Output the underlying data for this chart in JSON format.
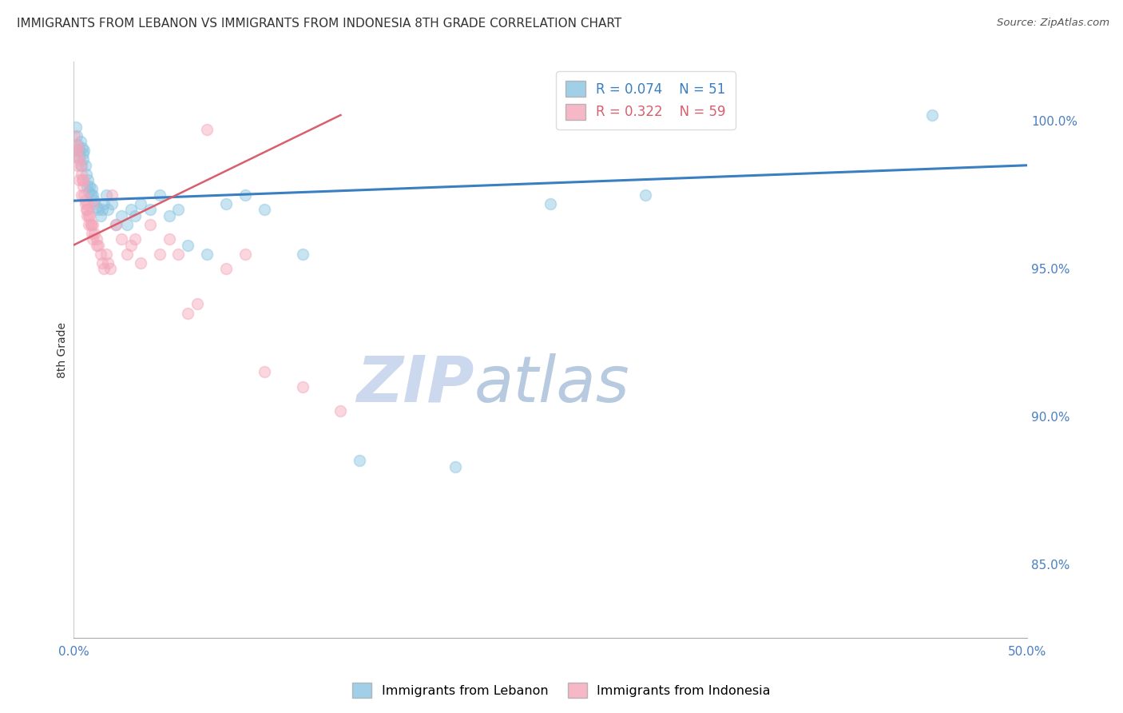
{
  "title": "IMMIGRANTS FROM LEBANON VS IMMIGRANTS FROM INDONESIA 8TH GRADE CORRELATION CHART",
  "source": "Source: ZipAtlas.com",
  "ylabel": "8th Grade",
  "ylabel_right_ticks": [
    85.0,
    90.0,
    95.0,
    100.0
  ],
  "xlim": [
    0.0,
    50.0
  ],
  "ylim": [
    82.5,
    102.0
  ],
  "legend_blue_R": "R = 0.074",
  "legend_blue_N": "N = 51",
  "legend_pink_R": "R = 0.322",
  "legend_pink_N": "N = 59",
  "blue_color": "#89c4e1",
  "pink_color": "#f4a6ba",
  "blue_line_color": "#3a7fc1",
  "pink_line_color": "#d95f6e",
  "title_color": "#333333",
  "source_color": "#555555",
  "tick_color": "#4a7fc1",
  "watermark_zip_color": "#d0dff0",
  "watermark_atlas_color": "#b8cce8",
  "grid_color": "#cccccc",
  "blue_scatter_x": [
    0.1,
    0.15,
    0.2,
    0.25,
    0.3,
    0.35,
    0.4,
    0.45,
    0.5,
    0.55,
    0.6,
    0.65,
    0.7,
    0.75,
    0.8,
    0.85,
    0.9,
    0.95,
    1.0,
    1.1,
    1.2,
    1.3,
    1.4,
    1.5,
    1.6,
    1.7,
    1.8,
    2.0,
    2.2,
    2.5,
    2.8,
    3.0,
    3.2,
    3.5,
    4.0,
    4.5,
    5.0,
    5.5,
    6.0,
    7.0,
    8.0,
    9.0,
    10.0,
    12.0,
    15.0,
    20.0,
    25.0,
    30.0,
    45.0,
    0.3,
    0.5
  ],
  "blue_scatter_y": [
    99.8,
    99.5,
    99.2,
    99.0,
    98.8,
    99.3,
    98.5,
    99.1,
    98.7,
    99.0,
    98.5,
    98.2,
    97.8,
    98.0,
    97.6,
    97.8,
    97.5,
    97.7,
    97.5,
    97.3,
    97.1,
    97.0,
    96.8,
    97.0,
    97.2,
    97.5,
    97.0,
    97.2,
    96.5,
    96.8,
    96.5,
    97.0,
    96.8,
    97.2,
    97.0,
    97.5,
    96.8,
    97.0,
    95.8,
    95.5,
    97.2,
    97.5,
    97.0,
    95.5,
    88.5,
    88.3,
    97.2,
    97.5,
    100.2,
    99.0,
    98.9
  ],
  "pink_scatter_x": [
    0.05,
    0.1,
    0.15,
    0.2,
    0.25,
    0.3,
    0.35,
    0.4,
    0.45,
    0.5,
    0.55,
    0.6,
    0.65,
    0.7,
    0.75,
    0.8,
    0.85,
    0.9,
    0.95,
    1.0,
    1.1,
    1.2,
    1.3,
    1.4,
    1.5,
    1.6,
    1.7,
    1.8,
    1.9,
    2.0,
    2.2,
    2.5,
    2.8,
    3.0,
    3.2,
    3.5,
    4.0,
    4.5,
    5.0,
    5.5,
    6.0,
    6.5,
    7.0,
    8.0,
    9.0,
    10.0,
    12.0,
    14.0,
    1.0,
    0.2,
    0.3,
    0.4,
    0.5,
    0.6,
    0.7,
    0.8,
    0.9,
    1.0,
    1.2
  ],
  "pink_scatter_y": [
    99.5,
    99.2,
    99.0,
    98.8,
    99.1,
    98.7,
    98.5,
    98.2,
    98.0,
    97.8,
    97.5,
    97.3,
    97.0,
    96.8,
    97.2,
    96.5,
    96.8,
    96.5,
    96.2,
    96.5,
    96.2,
    96.0,
    95.8,
    95.5,
    95.2,
    95.0,
    95.5,
    95.2,
    95.0,
    97.5,
    96.5,
    96.0,
    95.5,
    95.8,
    96.0,
    95.2,
    96.5,
    95.5,
    96.0,
    95.5,
    93.5,
    93.8,
    99.7,
    95.0,
    95.5,
    91.5,
    91.0,
    90.2,
    97.2,
    98.5,
    98.0,
    97.5,
    98.0,
    97.2,
    97.0,
    96.8,
    96.5,
    96.0,
    95.8
  ],
  "blue_trend_x": [
    0.0,
    50.0
  ],
  "blue_trend_y": [
    97.3,
    98.5
  ],
  "pink_trend_x": [
    0.0,
    14.0
  ],
  "pink_trend_y": [
    95.8,
    100.2
  ],
  "marker_size": 100,
  "marker_alpha": 0.45,
  "figsize": [
    14.06,
    8.92
  ],
  "dpi": 100
}
